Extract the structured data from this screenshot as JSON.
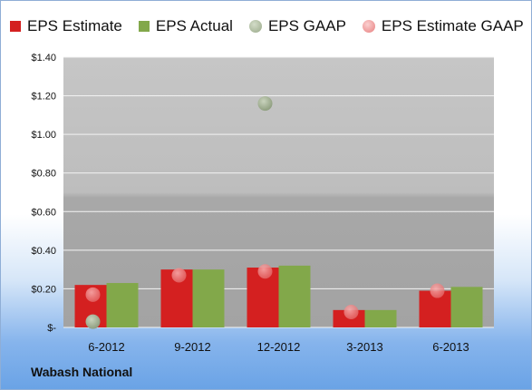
{
  "legend": {
    "estimate": "EPS Estimate",
    "actual": "EPS Actual",
    "gaap": "EPS GAAP",
    "estimate_gaap": "EPS Estimate GAAP"
  },
  "company": "Wabash National",
  "colors": {
    "estimate": "#d42020",
    "actual": "#82a84a",
    "gaap": "#a6b596",
    "estimate_gaap": "#ee8a8a"
  },
  "chart_data": {
    "type": "bar",
    "categories": [
      "6-2012",
      "9-2012",
      "12-2012",
      "3-2013",
      "6-2013"
    ],
    "series": [
      {
        "name": "EPS Estimate",
        "kind": "bar",
        "values": [
          0.22,
          0.3,
          0.31,
          0.09,
          0.19
        ]
      },
      {
        "name": "EPS Actual",
        "kind": "bar",
        "values": [
          0.23,
          0.3,
          0.32,
          0.09,
          0.21
        ]
      },
      {
        "name": "EPS GAAP",
        "kind": "point",
        "values": [
          0.03,
          null,
          1.16,
          null,
          null
        ]
      },
      {
        "name": "EPS Estimate GAAP",
        "kind": "point",
        "values": [
          0.17,
          0.27,
          0.29,
          0.08,
          0.19
        ]
      }
    ],
    "ylim": [
      0,
      1.4
    ],
    "yticks": [
      "$-",
      "$0.20",
      "$0.40",
      "$0.60",
      "$0.80",
      "$1.00",
      "$1.20",
      "$1.40"
    ],
    "grid": true,
    "legend_position": "top"
  }
}
